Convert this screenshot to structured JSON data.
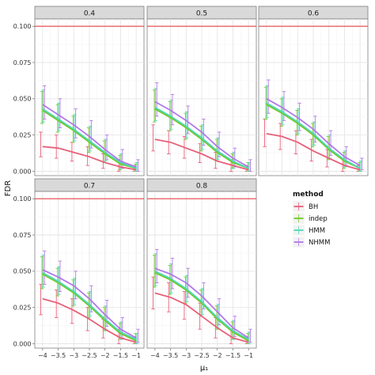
{
  "chart_data": {
    "type": "line",
    "facet_labels": [
      "0.4",
      "0.5",
      "0.6",
      "0.7",
      "0.8"
    ],
    "xlabel": "μ₁",
    "ylabel": "FDR",
    "x": [
      -4,
      -3.5,
      -3,
      -2.5,
      -2,
      -1.5,
      -1
    ],
    "x_tick_labels": [
      "−4",
      "−3.5",
      "−3",
      "−2.5",
      "−2",
      "−1.5",
      "−1"
    ],
    "xlim": [
      -4.25,
      -0.75
    ],
    "ylim": [
      -0.003,
      0.105
    ],
    "y_ticks": [
      0,
      0.025,
      0.05,
      0.075,
      0.1
    ],
    "y_tick_labels": [
      "0.000",
      "0.025",
      "0.050",
      "0.075",
      "0.100"
    ],
    "reference_line": {
      "y": 0.1,
      "color": "#e8434a"
    },
    "legend": {
      "title": "method",
      "position": "right"
    },
    "series_meta": [
      {
        "name": "BH",
        "color": "#e8607a"
      },
      {
        "name": "indep",
        "color": "#72c926"
      },
      {
        "name": "HMM",
        "color": "#4fd7b5"
      },
      {
        "name": "NHMM",
        "color": "#b07ae8"
      }
    ],
    "panels": [
      {
        "label": "0.4",
        "series": [
          {
            "name": "BH",
            "values": [
              0.017,
              0.016,
              0.013,
              0.01,
              0.006,
              0.003,
              0.001
            ],
            "lower": [
              0.01,
              0.009,
              0.007,
              0.004,
              0.002,
              0.0,
              0.0
            ],
            "upper": [
              0.027,
              0.025,
              0.02,
              0.017,
              0.012,
              0.008,
              0.004
            ]
          },
          {
            "name": "indep",
            "values": [
              0.042,
              0.035,
              0.028,
              0.02,
              0.012,
              0.005,
              0.002
            ],
            "lower": [
              0.033,
              0.027,
              0.02,
              0.013,
              0.006,
              0.001,
              0.0
            ],
            "upper": [
              0.055,
              0.046,
              0.038,
              0.03,
              0.021,
              0.011,
              0.005
            ]
          },
          {
            "name": "HMM",
            "values": [
              0.043,
              0.036,
              0.029,
              0.021,
              0.013,
              0.006,
              0.002
            ],
            "lower": [
              0.034,
              0.028,
              0.021,
              0.014,
              0.007,
              0.002,
              0.0
            ],
            "upper": [
              0.056,
              0.047,
              0.039,
              0.031,
              0.022,
              0.012,
              0.006
            ]
          },
          {
            "name": "NHMM",
            "values": [
              0.046,
              0.039,
              0.032,
              0.024,
              0.015,
              0.007,
              0.003
            ],
            "lower": [
              0.036,
              0.03,
              0.023,
              0.016,
              0.008,
              0.002,
              0.0
            ],
            "upper": [
              0.059,
              0.05,
              0.043,
              0.035,
              0.025,
              0.015,
              0.008
            ]
          }
        ]
      },
      {
        "label": "0.5",
        "series": [
          {
            "name": "BH",
            "values": [
              0.022,
              0.02,
              0.016,
              0.012,
              0.007,
              0.004,
              0.001
            ],
            "lower": [
              0.014,
              0.012,
              0.009,
              0.006,
              0.002,
              0.0,
              0.0
            ],
            "upper": [
              0.032,
              0.028,
              0.024,
              0.019,
              0.013,
              0.008,
              0.004
            ]
          },
          {
            "name": "indep",
            "values": [
              0.043,
              0.037,
              0.03,
              0.022,
              0.013,
              0.006,
              0.002
            ],
            "lower": [
              0.034,
              0.028,
              0.022,
              0.014,
              0.007,
              0.002,
              0.0
            ],
            "upper": [
              0.056,
              0.048,
              0.04,
              0.031,
              0.022,
              0.012,
              0.006
            ]
          },
          {
            "name": "HMM",
            "values": [
              0.044,
              0.038,
              0.031,
              0.023,
              0.014,
              0.007,
              0.002
            ],
            "lower": [
              0.035,
              0.029,
              0.023,
              0.015,
              0.008,
              0.002,
              0.0
            ],
            "upper": [
              0.057,
              0.049,
              0.041,
              0.032,
              0.023,
              0.013,
              0.006
            ]
          },
          {
            "name": "NHMM",
            "values": [
              0.048,
              0.042,
              0.035,
              0.027,
              0.017,
              0.009,
              0.003
            ],
            "lower": [
              0.038,
              0.032,
              0.026,
              0.018,
              0.01,
              0.003,
              0.0
            ],
            "upper": [
              0.061,
              0.053,
              0.045,
              0.036,
              0.027,
              0.016,
              0.008
            ]
          }
        ]
      },
      {
        "label": "0.6",
        "series": [
          {
            "name": "BH",
            "values": [
              0.026,
              0.024,
              0.02,
              0.014,
              0.009,
              0.004,
              0.001
            ],
            "lower": [
              0.017,
              0.015,
              0.012,
              0.007,
              0.003,
              0.0,
              0.0
            ],
            "upper": [
              0.036,
              0.033,
              0.028,
              0.022,
              0.015,
              0.009,
              0.004
            ]
          },
          {
            "name": "indep",
            "values": [
              0.046,
              0.04,
              0.033,
              0.025,
              0.015,
              0.007,
              0.002
            ],
            "lower": [
              0.036,
              0.031,
              0.025,
              0.017,
              0.008,
              0.002,
              0.0
            ],
            "upper": [
              0.058,
              0.05,
              0.042,
              0.033,
              0.024,
              0.013,
              0.006
            ]
          },
          {
            "name": "HMM",
            "values": [
              0.047,
              0.041,
              0.034,
              0.026,
              0.016,
              0.008,
              0.002
            ],
            "lower": [
              0.037,
              0.032,
              0.026,
              0.018,
              0.009,
              0.003,
              0.0
            ],
            "upper": [
              0.059,
              0.051,
              0.043,
              0.034,
              0.025,
              0.014,
              0.007
            ]
          },
          {
            "name": "NHMM",
            "values": [
              0.05,
              0.044,
              0.037,
              0.029,
              0.019,
              0.01,
              0.004
            ],
            "lower": [
              0.04,
              0.035,
              0.028,
              0.02,
              0.011,
              0.004,
              0.001
            ],
            "upper": [
              0.063,
              0.055,
              0.047,
              0.038,
              0.028,
              0.017,
              0.009
            ]
          }
        ]
      },
      {
        "label": "0.7",
        "series": [
          {
            "name": "BH",
            "values": [
              0.031,
              0.028,
              0.023,
              0.017,
              0.01,
              0.004,
              0.001
            ],
            "lower": [
              0.02,
              0.018,
              0.014,
              0.009,
              0.004,
              0.0,
              0.0
            ],
            "upper": [
              0.041,
              0.037,
              0.031,
              0.025,
              0.017,
              0.01,
              0.005
            ]
          },
          {
            "name": "indep",
            "values": [
              0.048,
              0.042,
              0.035,
              0.026,
              0.016,
              0.007,
              0.002
            ],
            "lower": [
              0.038,
              0.033,
              0.026,
              0.018,
              0.009,
              0.003,
              0.0
            ],
            "upper": [
              0.06,
              0.052,
              0.044,
              0.035,
              0.025,
              0.014,
              0.007
            ]
          },
          {
            "name": "HMM",
            "values": [
              0.049,
              0.043,
              0.036,
              0.027,
              0.017,
              0.008,
              0.003
            ],
            "lower": [
              0.039,
              0.034,
              0.027,
              0.019,
              0.01,
              0.003,
              0.0
            ],
            "upper": [
              0.061,
              0.053,
              0.045,
              0.036,
              0.026,
              0.015,
              0.007
            ]
          },
          {
            "name": "NHMM",
            "values": [
              0.051,
              0.046,
              0.04,
              0.031,
              0.02,
              0.01,
              0.004
            ],
            "lower": [
              0.041,
              0.036,
              0.031,
              0.022,
              0.012,
              0.004,
              0.001
            ],
            "upper": [
              0.064,
              0.057,
              0.05,
              0.04,
              0.03,
              0.018,
              0.01
            ]
          }
        ]
      },
      {
        "label": "0.8",
        "series": [
          {
            "name": "BH",
            "values": [
              0.035,
              0.032,
              0.027,
              0.019,
              0.011,
              0.004,
              0.001
            ],
            "lower": [
              0.024,
              0.022,
              0.017,
              0.01,
              0.004,
              0.0,
              0.0
            ],
            "upper": [
              0.046,
              0.042,
              0.036,
              0.028,
              0.018,
              0.01,
              0.005
            ]
          },
          {
            "name": "indep",
            "values": [
              0.049,
              0.044,
              0.037,
              0.028,
              0.017,
              0.008,
              0.002
            ],
            "lower": [
              0.039,
              0.034,
              0.028,
              0.019,
              0.01,
              0.003,
              0.0
            ],
            "upper": [
              0.061,
              0.054,
              0.046,
              0.037,
              0.026,
              0.015,
              0.007
            ]
          },
          {
            "name": "HMM",
            "values": [
              0.05,
              0.045,
              0.038,
              0.029,
              0.018,
              0.009,
              0.003
            ],
            "lower": [
              0.04,
              0.035,
              0.029,
              0.02,
              0.011,
              0.003,
              0.0
            ],
            "upper": [
              0.062,
              0.055,
              0.047,
              0.038,
              0.027,
              0.016,
              0.008
            ]
          },
          {
            "name": "NHMM",
            "values": [
              0.052,
              0.048,
              0.042,
              0.033,
              0.022,
              0.011,
              0.004
            ],
            "lower": [
              0.042,
              0.038,
              0.032,
              0.024,
              0.013,
              0.005,
              0.001
            ],
            "upper": [
              0.065,
              0.059,
              0.052,
              0.042,
              0.031,
              0.019,
              0.01
            ]
          }
        ]
      }
    ]
  }
}
